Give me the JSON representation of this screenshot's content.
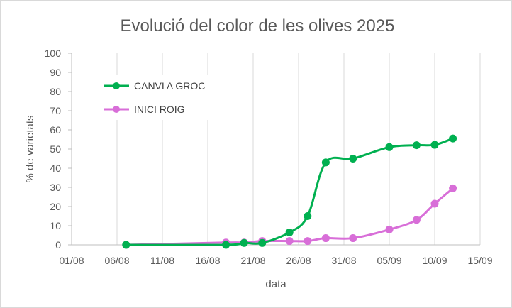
{
  "chart_data": {
    "type": "line",
    "title": "Evolució del color de les olives 2025",
    "xlabel": "data",
    "ylabel": "% de varietats",
    "ylim": [
      0,
      100
    ],
    "xlim": [
      "2025-08-01",
      "2025-09-15"
    ],
    "y_ticks": [
      0,
      10,
      20,
      30,
      40,
      50,
      60,
      70,
      80,
      90,
      100
    ],
    "x_ticks": [
      "01/08",
      "06/08",
      "11/08",
      "16/08",
      "21/08",
      "26/08",
      "31/08",
      "05/09",
      "10/09",
      "15/09"
    ],
    "x_tick_dates": [
      "2025-08-01",
      "2025-08-06",
      "2025-08-11",
      "2025-08-16",
      "2025-08-21",
      "2025-08-26",
      "2025-08-31",
      "2025-09-05",
      "2025-09-10",
      "2025-09-15"
    ],
    "grid": {
      "vertical": true,
      "horizontal": false
    },
    "legend": "upper-left",
    "series": [
      {
        "name": "CANVI A GROC",
        "color": "#00b050",
        "points": [
          {
            "x": "2025-08-07",
            "y": 0
          },
          {
            "x": "2025-08-18",
            "y": 0
          },
          {
            "x": "2025-08-20",
            "y": 1
          },
          {
            "x": "2025-08-22",
            "y": 1
          },
          {
            "x": "2025-08-25",
            "y": 6.5
          },
          {
            "x": "2025-08-27",
            "y": 15
          },
          {
            "x": "2025-08-29",
            "y": 43
          },
          {
            "x": "2025-09-01",
            "y": 45
          },
          {
            "x": "2025-09-05",
            "y": 51
          },
          {
            "x": "2025-09-08",
            "y": 52
          },
          {
            "x": "2025-09-10",
            "y": 52.2
          },
          {
            "x": "2025-09-12",
            "y": 55.5
          }
        ]
      },
      {
        "name": "INICI ROIG",
        "color": "#d86ed8",
        "points": [
          {
            "x": "2025-08-07",
            "y": 0
          },
          {
            "x": "2025-08-18",
            "y": 1.2
          },
          {
            "x": "2025-08-20",
            "y": 1.2
          },
          {
            "x": "2025-08-22",
            "y": 2
          },
          {
            "x": "2025-08-25",
            "y": 2
          },
          {
            "x": "2025-08-27",
            "y": 2
          },
          {
            "x": "2025-08-29",
            "y": 3.5
          },
          {
            "x": "2025-09-01",
            "y": 3.5
          },
          {
            "x": "2025-09-05",
            "y": 8
          },
          {
            "x": "2025-09-08",
            "y": 13
          },
          {
            "x": "2025-09-10",
            "y": 21.5
          },
          {
            "x": "2025-09-12",
            "y": 29.5
          }
        ]
      }
    ]
  }
}
